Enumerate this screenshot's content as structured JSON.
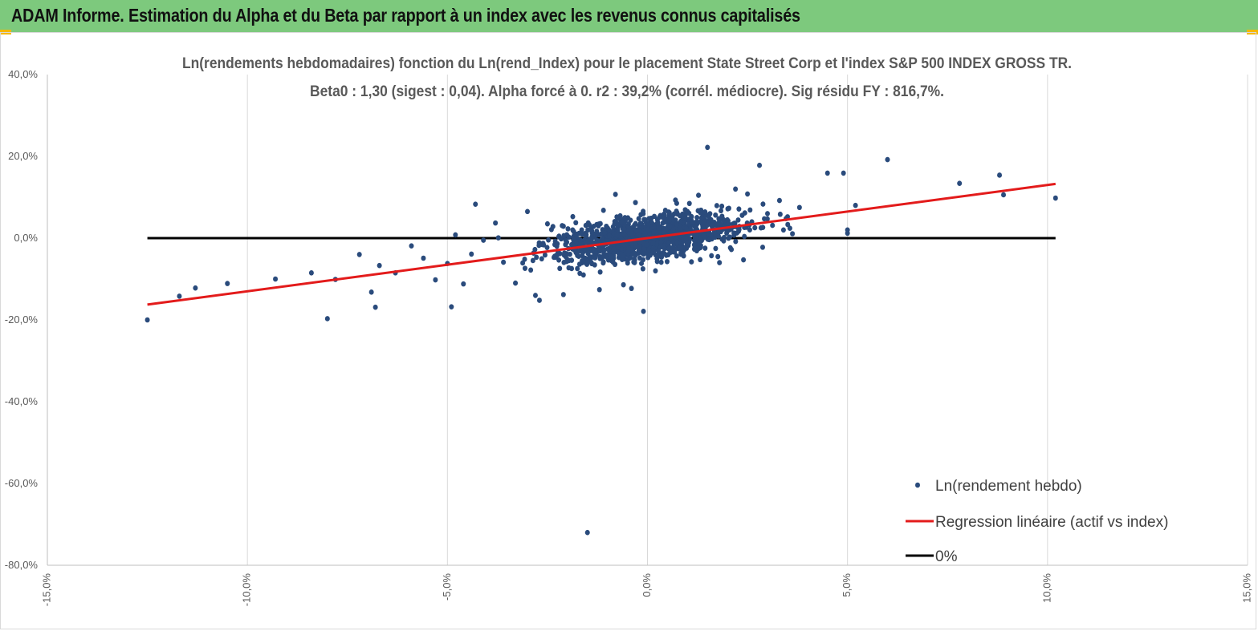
{
  "header": {
    "title": "ADAM Informe. Estimation du Alpha et du Beta par rapport à un index avec les revenus connus capitalisés"
  },
  "chart_data": {
    "type": "scatter",
    "title": "Ln(rendements hebdomadaires) fonction du Ln(rend_Index) pour le placement State Street Corp et l'index S&P 500 INDEX GROSS TR.",
    "subtitle": "Beta0 : 1,30  (sigest : 0,04). Alpha forcé à 0. r2 : 39,2% (corrél. médiocre). Sig résidu FY : 816,7%.",
    "xlabel": "",
    "ylabel": "",
    "xlim": [
      -0.15,
      0.15
    ],
    "ylim": [
      -0.8,
      0.4
    ],
    "x_ticks": [
      -0.15,
      -0.1,
      -0.05,
      0.0,
      0.05,
      0.1,
      0.15
    ],
    "x_tick_labels": [
      "-15,0%",
      "-10,0%",
      "-5,0%",
      "0,0%",
      "5,0%",
      "10,0%",
      "15,0%"
    ],
    "y_ticks": [
      0.4,
      0.2,
      0.0,
      -0.2,
      -0.4,
      -0.6,
      -0.8
    ],
    "y_tick_labels": [
      "40,0%",
      "20,0%",
      "0,0%",
      "-20,0%",
      "-40,0%",
      "-60,0%",
      "-80,0%"
    ],
    "grid": "vertical",
    "legend_position": "bottom-right",
    "colors": {
      "scatter": "#2a4b7c",
      "regression": "#e31b1b",
      "zero": "#000000",
      "grid": "#d9d9d9"
    },
    "series": [
      {
        "name": "Ln(rendement hebdo)",
        "kind": "scatter",
        "points": [
          [
            -0.125,
            -0.2
          ],
          [
            -0.117,
            -0.142
          ],
          [
            -0.113,
            -0.122
          ],
          [
            -0.105,
            -0.111
          ],
          [
            -0.093,
            -0.1
          ],
          [
            -0.08,
            -0.197
          ],
          [
            -0.084,
            -0.085
          ],
          [
            -0.078,
            -0.101
          ],
          [
            -0.072,
            -0.04
          ],
          [
            -0.069,
            -0.132
          ],
          [
            -0.068,
            -0.169
          ],
          [
            -0.067,
            -0.067
          ],
          [
            -0.063,
            -0.085
          ],
          [
            -0.059,
            -0.019
          ],
          [
            -0.056,
            -0.049
          ],
          [
            -0.053,
            -0.102
          ],
          [
            -0.05,
            -0.062
          ],
          [
            -0.049,
            -0.168
          ],
          [
            -0.048,
            0.008
          ],
          [
            -0.046,
            -0.112
          ],
          [
            -0.044,
            -0.039
          ],
          [
            -0.043,
            0.083
          ],
          [
            -0.041,
            -0.005
          ],
          [
            -0.038,
            0.037
          ],
          [
            -0.036,
            -0.059
          ],
          [
            -0.033,
            -0.11
          ],
          [
            -0.03,
            0.065
          ],
          [
            -0.028,
            -0.14
          ],
          [
            -0.027,
            -0.152
          ],
          [
            -0.024,
            0.021
          ],
          [
            -0.021,
            -0.138
          ],
          [
            -0.016,
            -0.09
          ],
          [
            -0.012,
            -0.126
          ],
          [
            -0.008,
            0.107
          ],
          [
            -0.006,
            -0.114
          ],
          [
            -0.003,
            0.087
          ],
          [
            -0.001,
            -0.179
          ],
          [
            0.002,
            -0.08
          ],
          [
            0.006,
            0.04
          ],
          [
            0.01,
            0.065
          ],
          [
            0.015,
            0.222
          ],
          [
            0.018,
            -0.06
          ],
          [
            0.022,
            0.12
          ],
          [
            0.028,
            0.178
          ],
          [
            0.03,
            0.06
          ],
          [
            0.034,
            0.02
          ],
          [
            0.038,
            0.075
          ],
          [
            0.045,
            0.159
          ],
          [
            0.049,
            0.159
          ],
          [
            0.05,
            0.012
          ],
          [
            0.05,
            0.02
          ],
          [
            0.052,
            0.08
          ],
          [
            0.06,
            0.192
          ],
          [
            0.078,
            0.134
          ],
          [
            0.088,
            0.154
          ],
          [
            0.089,
            0.106
          ],
          [
            0.102,
            0.098
          ],
          [
            -0.015,
            -0.72
          ],
          [
            -0.004,
            -0.123
          ],
          [
            0.011,
            -0.058
          ],
          [
            -0.009,
            -0.055
          ],
          [
            0.024,
            -0.053
          ],
          [
            -0.025,
            0.035
          ],
          [
            0.007,
            0.093
          ],
          [
            0.016,
            -0.043
          ],
          [
            0.033,
            0.092
          ],
          [
            -0.011,
            0.068
          ],
          [
            0.025,
            0.108
          ]
        ]
      },
      {
        "name": "Regression linéaire (actif vs index)",
        "kind": "line",
        "slope": 1.3,
        "x_range": [
          -0.125,
          0.102
        ]
      },
      {
        "name": "0%",
        "kind": "line",
        "slope": 0.0,
        "x_range": [
          -0.125,
          0.102
        ]
      }
    ]
  }
}
